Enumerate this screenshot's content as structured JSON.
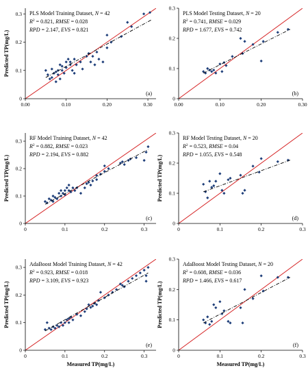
{
  "colors": {
    "points": "#1f3f7a",
    "one_to_one": "#d62728",
    "trend": "#000000",
    "axes": "#000000"
  },
  "chart_data": [
    {
      "type": "scatter",
      "panel_label": "(a)",
      "title_lines": [
        "PLS Model Training Dataset, N = 42",
        "R2 = 0.821, RMSE = 0.028",
        "RPD = 2.147, EVS = 0.821"
      ],
      "xlabel": "",
      "ylabel": "Predicted TP(mg/L)",
      "xlim": [
        0,
        0.32
      ],
      "ylim": [
        0,
        0.32
      ],
      "xticks": [
        "0.00",
        "0.10",
        "0.20",
        "0.30"
      ],
      "xtick_values": [
        0,
        0.1,
        0.2,
        0.3
      ],
      "yticks": [
        "0",
        "0.1",
        "0.2",
        "0.3"
      ],
      "ytick_values": [
        0,
        0.1,
        0.2,
        0.3
      ],
      "one_to_one_line": true,
      "trend_line": [
        [
          0.05,
          0.075
        ],
        [
          0.31,
          0.28
        ]
      ],
      "points": [
        [
          0.05,
          0.1
        ],
        [
          0.055,
          0.085
        ],
        [
          0.06,
          0.07
        ],
        [
          0.065,
          0.105
        ],
        [
          0.065,
          0.075
        ],
        [
          0.07,
          0.09
        ],
        [
          0.075,
          0.06
        ],
        [
          0.075,
          0.095
        ],
        [
          0.08,
          0.085
        ],
        [
          0.08,
          0.1
        ],
        [
          0.085,
          0.07
        ],
        [
          0.085,
          0.12
        ],
        [
          0.09,
          0.1
        ],
        [
          0.09,
          0.115
        ],
        [
          0.095,
          0.09
        ],
        [
          0.1,
          0.13
        ],
        [
          0.1,
          0.11
        ],
        [
          0.105,
          0.14
        ],
        [
          0.11,
          0.13
        ],
        [
          0.11,
          0.12
        ],
        [
          0.115,
          0.1
        ],
        [
          0.12,
          0.09
        ],
        [
          0.12,
          0.14
        ],
        [
          0.125,
          0.12
        ],
        [
          0.135,
          0.13
        ],
        [
          0.14,
          0.105
        ],
        [
          0.15,
          0.15
        ],
        [
          0.155,
          0.16
        ],
        [
          0.16,
          0.13
        ],
        [
          0.165,
          0.15
        ],
        [
          0.17,
          0.12
        ],
        [
          0.175,
          0.165
        ],
        [
          0.18,
          0.14
        ],
        [
          0.19,
          0.13
        ],
        [
          0.2,
          0.225
        ],
        [
          0.2,
          0.18
        ],
        [
          0.21,
          0.2
        ],
        [
          0.235,
          0.22
        ],
        [
          0.25,
          0.27
        ],
        [
          0.26,
          0.255
        ],
        [
          0.29,
          0.3
        ],
        [
          0.305,
          0.305
        ]
      ]
    },
    {
      "type": "scatter",
      "panel_label": "(b)",
      "title_lines": [
        "PLS Model Testing Dataset, N = 20",
        "R2 = 0.741, RMSE = 0.029",
        "RPD = 1.677, EVS = 0.742"
      ],
      "xlabel": "",
      "ylabel": "",
      "xlim": [
        0,
        0.3
      ],
      "ylim": [
        0,
        0.3
      ],
      "xticks": [
        "0.00",
        "0.10",
        "0.20",
        "0.30"
      ],
      "xtick_values": [
        0,
        0.1,
        0.2,
        0.3
      ],
      "yticks": [
        "0",
        "0.1",
        "0.2",
        "0.3"
      ],
      "ytick_values": [
        0,
        0.1,
        0.2,
        0.3
      ],
      "one_to_one_line": true,
      "trend_line": [
        [
          0.06,
          0.085
        ],
        [
          0.27,
          0.23
        ]
      ],
      "points": [
        [
          0.06,
          0.09
        ],
        [
          0.065,
          0.085
        ],
        [
          0.07,
          0.1
        ],
        [
          0.075,
          0.095
        ],
        [
          0.08,
          0.09
        ],
        [
          0.085,
          0.095
        ],
        [
          0.09,
          0.085
        ],
        [
          0.1,
          0.115
        ],
        [
          0.105,
          0.09
        ],
        [
          0.11,
          0.12
        ],
        [
          0.115,
          0.11
        ],
        [
          0.13,
          0.14
        ],
        [
          0.15,
          0.2
        ],
        [
          0.155,
          0.15
        ],
        [
          0.16,
          0.19
        ],
        [
          0.18,
          0.18
        ],
        [
          0.2,
          0.125
        ],
        [
          0.205,
          0.19
        ],
        [
          0.24,
          0.22
        ],
        [
          0.265,
          0.23
        ]
      ]
    },
    {
      "type": "scatter",
      "panel_label": "(c)",
      "title_lines": [
        "RF Model Training Dataset, N = 42",
        "R2 = 0.882, RMSE = 0.023",
        "RPD = 2.194, EVS = 0.882"
      ],
      "xlabel": "",
      "ylabel": "Predicted TP(mg/L)",
      "xlim": [
        0,
        0.33
      ],
      "ylim": [
        0,
        0.33
      ],
      "xticks": [
        "0",
        "0.1",
        "0.2",
        "0.3"
      ],
      "xtick_values": [
        0,
        0.1,
        0.2,
        0.3
      ],
      "yticks": [
        "0",
        "0.1",
        "0.2",
        "0.3"
      ],
      "ytick_values": [
        0,
        0.1,
        0.2,
        0.3
      ],
      "one_to_one_line": true,
      "trend_line": [
        [
          0.05,
          0.07
        ],
        [
          0.31,
          0.27
        ]
      ],
      "points": [
        [
          0.05,
          0.08
        ],
        [
          0.055,
          0.075
        ],
        [
          0.06,
          0.09
        ],
        [
          0.065,
          0.085
        ],
        [
          0.07,
          0.08
        ],
        [
          0.07,
          0.1
        ],
        [
          0.075,
          0.095
        ],
        [
          0.08,
          0.09
        ],
        [
          0.085,
          0.11
        ],
        [
          0.09,
          0.1
        ],
        [
          0.09,
          0.12
        ],
        [
          0.095,
          0.11
        ],
        [
          0.1,
          0.12
        ],
        [
          0.1,
          0.105
        ],
        [
          0.105,
          0.13
        ],
        [
          0.11,
          0.12
        ],
        [
          0.11,
          0.14
        ],
        [
          0.115,
          0.115
        ],
        [
          0.12,
          0.13
        ],
        [
          0.125,
          0.12
        ],
        [
          0.13,
          0.13
        ],
        [
          0.14,
          0.11
        ],
        [
          0.15,
          0.13
        ],
        [
          0.155,
          0.145
        ],
        [
          0.16,
          0.15
        ],
        [
          0.165,
          0.14
        ],
        [
          0.17,
          0.155
        ],
        [
          0.18,
          0.16
        ],
        [
          0.18,
          0.175
        ],
        [
          0.19,
          0.18
        ],
        [
          0.2,
          0.19
        ],
        [
          0.2,
          0.21
        ],
        [
          0.21,
          0.2
        ],
        [
          0.24,
          0.22
        ],
        [
          0.245,
          0.225
        ],
        [
          0.25,
          0.215
        ],
        [
          0.26,
          0.23
        ],
        [
          0.265,
          0.235
        ],
        [
          0.28,
          0.24
        ],
        [
          0.3,
          0.23
        ],
        [
          0.305,
          0.26
        ],
        [
          0.31,
          0.28
        ]
      ]
    },
    {
      "type": "scatter",
      "panel_label": "(d)",
      "title_lines": [
        "RF Model Testing Dataset, N = 20",
        "R2 = 0.523, RMSE = 0.04",
        "RPD = 1.055, EVS = 0.548"
      ],
      "xlabel": "",
      "ylabel": "Predicted TP(mg/L)",
      "xlim": [
        0,
        0.3
      ],
      "ylim": [
        0,
        0.3
      ],
      "xticks": [
        "0",
        "0.1",
        "0.2",
        "0.3"
      ],
      "xtick_values": [
        0,
        0.1,
        0.2,
        0.3
      ],
      "yticks": [
        "0",
        "0.1",
        "0.2",
        "0.3"
      ],
      "ytick_values": [
        0,
        0.1,
        0.2,
        0.3
      ],
      "one_to_one_line": true,
      "trend_line": [
        [
          0.06,
          0.105
        ],
        [
          0.27,
          0.21
        ]
      ],
      "points": [
        [
          0.06,
          0.13
        ],
        [
          0.065,
          0.105
        ],
        [
          0.07,
          0.085
        ],
        [
          0.075,
          0.14
        ],
        [
          0.08,
          0.12
        ],
        [
          0.085,
          0.125
        ],
        [
          0.09,
          0.14
        ],
        [
          0.1,
          0.165
        ],
        [
          0.105,
          0.11
        ],
        [
          0.11,
          0.1
        ],
        [
          0.12,
          0.145
        ],
        [
          0.125,
          0.15
        ],
        [
          0.15,
          0.16
        ],
        [
          0.155,
          0.1
        ],
        [
          0.16,
          0.11
        ],
        [
          0.18,
          0.19
        ],
        [
          0.195,
          0.17
        ],
        [
          0.2,
          0.215
        ],
        [
          0.24,
          0.205
        ],
        [
          0.265,
          0.21
        ]
      ]
    },
    {
      "type": "scatter",
      "panel_label": "(e)",
      "title_lines": [
        "AdaBoost Model Training Dataset, N = 42",
        "R2 = 0.923, RMSE = 0.018",
        "RPD = 3.109, EVS = 0.923"
      ],
      "xlabel": "Measured TP(mg/L)",
      "ylabel": "Predicted TP(mg/L)",
      "xlim": [
        0,
        0.33
      ],
      "ylim": [
        0,
        0.33
      ],
      "xticks": [
        "0",
        "0.1",
        "0.2",
        "0.3"
      ],
      "xtick_values": [
        0,
        0.1,
        0.2,
        0.3
      ],
      "yticks": [
        "0",
        "0.1",
        "0.2",
        "0.3"
      ],
      "ytick_values": [
        0,
        0.1,
        0.2,
        0.3
      ],
      "one_to_one_line": true,
      "trend_line": [
        [
          0.05,
          0.07
        ],
        [
          0.31,
          0.28
        ]
      ],
      "points": [
        [
          0.05,
          0.075
        ],
        [
          0.055,
          0.1
        ],
        [
          0.06,
          0.08
        ],
        [
          0.065,
          0.075
        ],
        [
          0.07,
          0.085
        ],
        [
          0.075,
          0.08
        ],
        [
          0.08,
          0.09
        ],
        [
          0.085,
          0.085
        ],
        [
          0.09,
          0.1
        ],
        [
          0.095,
          0.09
        ],
        [
          0.1,
          0.1
        ],
        [
          0.105,
          0.11
        ],
        [
          0.11,
          0.115
        ],
        [
          0.11,
          0.1
        ],
        [
          0.115,
          0.12
        ],
        [
          0.12,
          0.11
        ],
        [
          0.13,
          0.13
        ],
        [
          0.14,
          0.125
        ],
        [
          0.15,
          0.14
        ],
        [
          0.155,
          0.15
        ],
        [
          0.16,
          0.165
        ],
        [
          0.165,
          0.155
        ],
        [
          0.17,
          0.16
        ],
        [
          0.175,
          0.17
        ],
        [
          0.18,
          0.165
        ],
        [
          0.185,
          0.18
        ],
        [
          0.19,
          0.21
        ],
        [
          0.2,
          0.19
        ],
        [
          0.21,
          0.2
        ],
        [
          0.22,
          0.21
        ],
        [
          0.23,
          0.22
        ],
        [
          0.24,
          0.24
        ],
        [
          0.245,
          0.235
        ],
        [
          0.25,
          0.23
        ],
        [
          0.26,
          0.25
        ],
        [
          0.27,
          0.26
        ],
        [
          0.28,
          0.27
        ],
        [
          0.29,
          0.28
        ],
        [
          0.3,
          0.29
        ],
        [
          0.305,
          0.27
        ],
        [
          0.31,
          0.3
        ],
        [
          0.305,
          0.25
        ]
      ]
    },
    {
      "type": "scatter",
      "panel_label": "(f)",
      "title_lines": [
        "AdaBoost Model Testing Dataset, N = 20",
        "R2 = 0.608, RMSE = 0.036",
        "RPD = 1.466, EVS = 0.617"
      ],
      "xlabel": "Measured TP(mg/L)",
      "ylabel": "Predicted TP(mg/L)",
      "xlim": [
        0,
        0.3
      ],
      "ylim": [
        0,
        0.3
      ],
      "xticks": [
        "0",
        "0.1",
        "0.2",
        "0.3"
      ],
      "xtick_values": [
        0,
        0.1,
        0.2,
        0.3
      ],
      "yticks": [
        "0",
        "0.1",
        "0.2",
        "0.3"
      ],
      "ytick_values": [
        0,
        0.1,
        0.2,
        0.3
      ],
      "one_to_one_line": true,
      "trend_line": [
        [
          0.06,
          0.09
        ],
        [
          0.27,
          0.24
        ]
      ],
      "points": [
        [
          0.06,
          0.1
        ],
        [
          0.065,
          0.09
        ],
        [
          0.07,
          0.11
        ],
        [
          0.075,
          0.085
        ],
        [
          0.08,
          0.095
        ],
        [
          0.085,
          0.15
        ],
        [
          0.09,
          0.14
        ],
        [
          0.1,
          0.16
        ],
        [
          0.105,
          0.12
        ],
        [
          0.11,
          0.13
        ],
        [
          0.12,
          0.095
        ],
        [
          0.125,
          0.09
        ],
        [
          0.15,
          0.14
        ],
        [
          0.155,
          0.09
        ],
        [
          0.16,
          0.2
        ],
        [
          0.18,
          0.17
        ],
        [
          0.2,
          0.245
        ],
        [
          0.205,
          0.195
        ],
        [
          0.24,
          0.24
        ],
        [
          0.265,
          0.24
        ]
      ]
    }
  ]
}
